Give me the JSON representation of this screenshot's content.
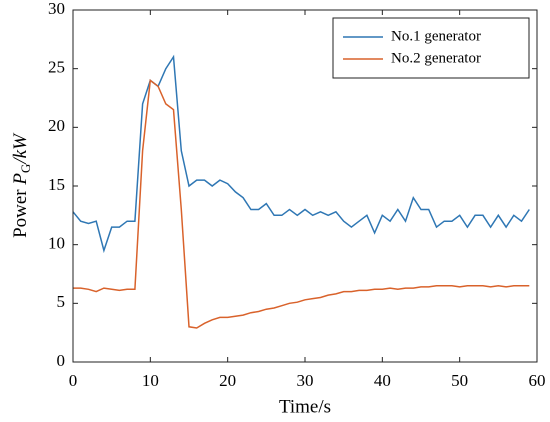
{
  "chart_data": {
    "type": "line",
    "xlabel": "Time/s",
    "ylabel": {
      "text": "Power ",
      "symbol": "P",
      "subscript": "G",
      "unit": "/kW"
    },
    "x": [
      0,
      1,
      2,
      3,
      4,
      5,
      6,
      7,
      8,
      9,
      10,
      11,
      12,
      13,
      14,
      15,
      16,
      17,
      18,
      19,
      20,
      21,
      22,
      23,
      24,
      25,
      26,
      27,
      28,
      29,
      30,
      31,
      32,
      33,
      34,
      35,
      36,
      37,
      38,
      39,
      40,
      41,
      42,
      43,
      44,
      45,
      46,
      47,
      48,
      49,
      50,
      51,
      52,
      53,
      54,
      55,
      56,
      57,
      58,
      59
    ],
    "series": [
      {
        "name": "No.1 generator",
        "color": "#2f77b4",
        "values": [
          12.8,
          12,
          11.8,
          12,
          9.5,
          11.5,
          11.5,
          12,
          12,
          22,
          24,
          23.5,
          25,
          26,
          18,
          15,
          15.5,
          15.5,
          15,
          15.5,
          15.2,
          14.5,
          14,
          13,
          13,
          13.5,
          12.5,
          12.5,
          13,
          12.5,
          13,
          12.5,
          12.8,
          12.5,
          12.8,
          12,
          11.5,
          12,
          12.5,
          11,
          12.5,
          12,
          13,
          12,
          14,
          13,
          13,
          11.5,
          12,
          12,
          12.5,
          11.5,
          12.5,
          12.5,
          11.5,
          12.5,
          11.5,
          12.5,
          12,
          13
        ]
      },
      {
        "name": "No.2 generator",
        "color": "#d9622b",
        "values": [
          6.3,
          6.3,
          6.2,
          6,
          6.3,
          6.2,
          6.1,
          6.2,
          6.2,
          18,
          24,
          23.5,
          22,
          21.5,
          13,
          3,
          2.9,
          3.3,
          3.6,
          3.8,
          3.8,
          3.9,
          4,
          4.2,
          4.3,
          4.5,
          4.6,
          4.8,
          5,
          5.1,
          5.3,
          5.4,
          5.5,
          5.7,
          5.8,
          6,
          6,
          6.1,
          6.1,
          6.2,
          6.2,
          6.3,
          6.2,
          6.3,
          6.3,
          6.4,
          6.4,
          6.5,
          6.5,
          6.5,
          6.4,
          6.5,
          6.5,
          6.5,
          6.4,
          6.5,
          6.4,
          6.5,
          6.5,
          6.5
        ]
      }
    ],
    "xlim": [
      0,
      60
    ],
    "xticks": [
      0,
      10,
      20,
      30,
      40,
      50,
      60
    ],
    "ylim": [
      0,
      30
    ],
    "yticks": [
      0,
      5,
      10,
      15,
      20,
      25,
      30
    ],
    "legend": "upper right"
  }
}
